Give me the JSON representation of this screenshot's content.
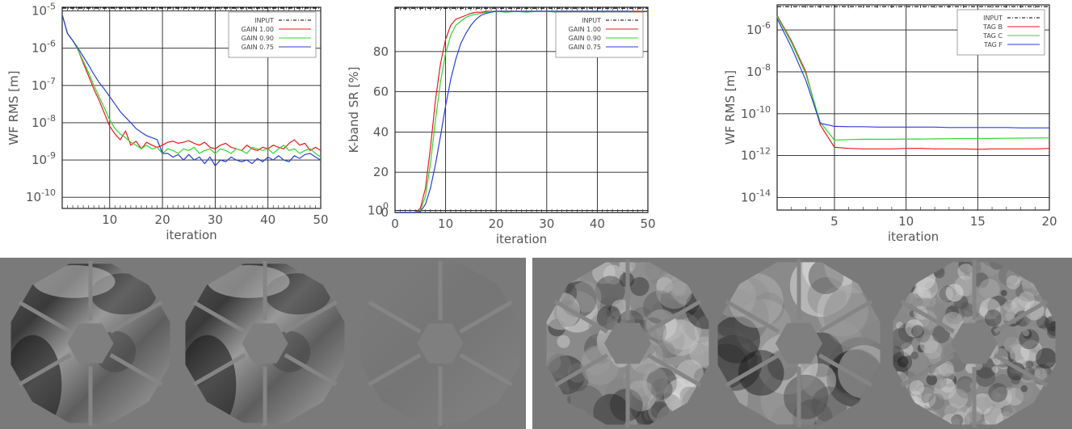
{
  "chart_data": [
    {
      "type": "line",
      "xlabel": "iteration",
      "ylabel": "WF RMS [m]",
      "xlim": [
        1,
        50
      ],
      "ylim_log10": [
        -10.3,
        -4.9
      ],
      "yscale": "log",
      "xticks": [
        "10",
        "20",
        "30",
        "40",
        "50"
      ],
      "yticks": [
        "10-10",
        "10-9",
        "10-8",
        "10-7",
        "10-6",
        "10-5"
      ],
      "grid": true,
      "legend_position": "top-right",
      "series": [
        {
          "name": "INPUT",
          "color": "#000000",
          "dash": "dash-dot",
          "x": [
            1,
            50
          ],
          "values": [
            1.2e-05,
            1.2e-05
          ]
        },
        {
          "name": "GAIN 1.00",
          "color": "#e8171d",
          "x": [
            1,
            2,
            3,
            4,
            5,
            6,
            7,
            8,
            9,
            10,
            11,
            12,
            13,
            14,
            15,
            16,
            17,
            18,
            19,
            20,
            21,
            22,
            23,
            24,
            25,
            26,
            27,
            28,
            29,
            30,
            31,
            32,
            33,
            34,
            35,
            36,
            37,
            38,
            39,
            40,
            41,
            42,
            43,
            44,
            45,
            46,
            47,
            48,
            49,
            50
          ],
          "values": [
            8e-06,
            2.5e-06,
            1.6e-06,
            9e-07,
            4e-07,
            1.8e-07,
            8e-08,
            4e-08,
            1.8e-08,
            8e-09,
            5e-09,
            3.5e-09,
            6e-09,
            2.5e-09,
            3.2e-09,
            2e-09,
            3e-09,
            2.5e-09,
            2.2e-09,
            2.5e-09,
            3e-09,
            3.2e-09,
            2.8e-09,
            3e-09,
            3.3e-09,
            2.8e-09,
            2.5e-09,
            3e-09,
            2.2e-09,
            2e-09,
            2.5e-09,
            2.8e-09,
            2.2e-09,
            2e-09,
            1.8e-09,
            2.5e-09,
            2e-09,
            1.8e-09,
            2.2e-09,
            2e-09,
            2.5e-09,
            2.2e-09,
            2e-09,
            2.8e-09,
            3.5e-09,
            2.5e-09,
            2.8e-09,
            1.8e-09,
            2.2e-09,
            1.8e-09
          ]
        },
        {
          "name": "GAIN 0.90",
          "color": "#2fd62f",
          "x": [
            1,
            2,
            3,
            4,
            5,
            6,
            7,
            8,
            9,
            10,
            11,
            12,
            13,
            14,
            15,
            16,
            17,
            18,
            19,
            20,
            21,
            22,
            23,
            24,
            25,
            26,
            27,
            28,
            29,
            30,
            31,
            32,
            33,
            34,
            35,
            36,
            37,
            38,
            39,
            40,
            41,
            42,
            43,
            44,
            45,
            46,
            47,
            48,
            49,
            50
          ],
          "values": [
            8e-06,
            2.5e-06,
            1.6e-06,
            9e-07,
            4.5e-07,
            2.2e-07,
            1e-07,
            5e-08,
            2.5e-08,
            1.2e-08,
            7e-09,
            5e-09,
            4e-09,
            3e-09,
            2.5e-09,
            2e-09,
            2.5e-09,
            2e-09,
            2.2e-09,
            1.5e-09,
            2e-09,
            1.8e-09,
            1.5e-09,
            2e-09,
            1.8e-09,
            2.2e-09,
            1.5e-09,
            1.8e-09,
            2e-09,
            1.5e-09,
            2e-09,
            1.8e-09,
            1.5e-09,
            2e-09,
            1.8e-09,
            1.5e-09,
            2.2e-09,
            2e-09,
            1.8e-09,
            2e-09,
            1.5e-09,
            2e-09,
            2.5e-09,
            1.8e-09,
            2e-09,
            1.5e-09,
            1.8e-09,
            2e-09,
            1.5e-09,
            1.2e-09
          ]
        },
        {
          "name": "GAIN 0.75",
          "color": "#2b3ed6",
          "x": [
            1,
            2,
            3,
            4,
            5,
            6,
            7,
            8,
            9,
            10,
            11,
            12,
            13,
            14,
            15,
            16,
            17,
            18,
            19,
            20,
            21,
            22,
            23,
            24,
            25,
            26,
            27,
            28,
            29,
            30,
            31,
            32,
            33,
            34,
            35,
            36,
            37,
            38,
            39,
            40,
            41,
            42,
            43,
            44,
            45,
            46,
            47,
            48,
            49,
            50
          ],
          "values": [
            8e-06,
            2.5e-06,
            1.6e-06,
            1e-06,
            6e-07,
            3.5e-07,
            2e-07,
            1.2e-07,
            8e-08,
            5e-08,
            3.2e-08,
            2e-08,
            1.4e-08,
            1e-08,
            7e-09,
            5.5e-09,
            4.5e-09,
            4e-09,
            3.5e-09,
            1.5e-09,
            1.5e-09,
            1.2e-09,
            1.4e-09,
            1e-09,
            1.4e-09,
            1e-09,
            1.2e-09,
            8e-10,
            1.2e-09,
            7e-10,
            1e-09,
            9e-10,
            1.2e-09,
            1e-09,
            9e-10,
            1e-09,
            8e-10,
            1.1e-09,
            9e-10,
            1.2e-09,
            1e-09,
            1.3e-09,
            1e-09,
            9e-10,
            1.3e-09,
            1.1e-09,
            1.4e-09,
            1.5e-09,
            1.2e-09,
            1e-09
          ]
        }
      ]
    },
    {
      "type": "line",
      "xlabel": "iteration",
      "ylabel": "K-band SR [%]",
      "xlim": [
        0,
        50
      ],
      "ylim": [
        0,
        102
      ],
      "xticks": [
        "0",
        "10",
        "20",
        "30",
        "40",
        "50"
      ],
      "yticks": [
        "0",
        "20",
        "40",
        "60",
        "80",
        "100"
      ],
      "grid": true,
      "legend_position": "top-right",
      "series": [
        {
          "name": "INPUT",
          "color": "#000000",
          "dash": "dash-dot",
          "x": [
            0,
            50
          ],
          "values": [
            101.5,
            101.5
          ]
        },
        {
          "name": "GAIN 1.00",
          "color": "#e8171d",
          "x": [
            0,
            1,
            2,
            3,
            4,
            5,
            6,
            7,
            8,
            9,
            10,
            11,
            12,
            13,
            14,
            15,
            16,
            17,
            18,
            19,
            20,
            22,
            24,
            26,
            28,
            30,
            32,
            34,
            36,
            38,
            40,
            42,
            44,
            46,
            48,
            50
          ],
          "values": [
            0,
            0,
            0,
            0,
            0,
            2,
            12,
            32,
            56,
            74,
            86,
            93,
            96,
            97,
            98,
            99,
            99.5,
            99.5,
            100,
            100,
            100,
            100,
            100,
            100,
            100,
            100,
            100,
            100,
            100,
            100,
            100,
            100,
            100,
            100,
            100,
            100
          ]
        },
        {
          "name": "GAIN 0.90",
          "color": "#2fd62f",
          "x": [
            0,
            1,
            2,
            3,
            4,
            5,
            6,
            7,
            8,
            9,
            10,
            11,
            12,
            13,
            14,
            15,
            16,
            17,
            18,
            19,
            20,
            22,
            24,
            26,
            28,
            30,
            32,
            34,
            36,
            38,
            40,
            42,
            44,
            46,
            48,
            50
          ],
          "values": [
            0,
            0,
            0,
            0,
            0,
            1,
            8,
            24,
            46,
            65,
            79,
            88,
            93,
            95,
            97,
            98,
            98.5,
            99,
            99.5,
            100,
            100,
            99.5,
            100,
            99.5,
            100,
            100,
            99.5,
            100,
            100,
            100,
            99.5,
            100,
            100,
            100,
            99.5,
            100
          ]
        },
        {
          "name": "GAIN 0.75",
          "color": "#2b3ed6",
          "x": [
            0,
            1,
            2,
            3,
            4,
            5,
            6,
            7,
            8,
            9,
            10,
            11,
            12,
            13,
            14,
            15,
            16,
            17,
            18,
            19,
            20,
            22,
            24,
            26,
            28,
            30,
            32,
            34,
            36,
            38,
            40,
            42,
            44,
            46,
            48,
            50
          ],
          "values": [
            0,
            0,
            0,
            0,
            0,
            0.5,
            4,
            12,
            24,
            38,
            53,
            66,
            76,
            84,
            89,
            93,
            96,
            98,
            99,
            99.5,
            100,
            100,
            100,
            100,
            100,
            100,
            100,
            100,
            100,
            100,
            100,
            100,
            100,
            100,
            99.5,
            100
          ]
        }
      ]
    },
    {
      "type": "line",
      "xlabel": "iteration",
      "ylabel": "WF RMS [m]",
      "xlim": [
        1,
        20
      ],
      "ylim_log10": [
        -14.6,
        -4.8
      ],
      "yscale": "log",
      "xticks": [
        "5",
        "10",
        "15",
        "20"
      ],
      "yticks": [
        "10-14",
        "10-12",
        "10-10",
        "10-8",
        "10-6"
      ],
      "grid": true,
      "legend_position": "top-right",
      "series": [
        {
          "name": "INPUT",
          "color": "#000000",
          "dash": "dash-dot",
          "x": [
            1,
            20
          ],
          "values": [
            1.3e-05,
            1.3e-05
          ]
        },
        {
          "name": "TAG B",
          "color": "#e8171d",
          "x": [
            1,
            2,
            3,
            4,
            5,
            6,
            7,
            8,
            9,
            10,
            11,
            12,
            13,
            14,
            15,
            16,
            17,
            18,
            19,
            20
          ],
          "values": [
            5e-06,
            3e-07,
            1e-08,
            3e-11,
            2.5e-12,
            2.2e-12,
            2.1e-12,
            2.1e-12,
            2.1e-12,
            2.2e-12,
            2.2e-12,
            2.1e-12,
            2.1e-12,
            2.1e-12,
            2e-12,
            2.1e-12,
            2.1e-12,
            2.1e-12,
            2.1e-12,
            2.2e-12
          ]
        },
        {
          "name": "TAG C",
          "color": "#2fd62f",
          "x": [
            1,
            2,
            3,
            4,
            5,
            6,
            7,
            8,
            9,
            10,
            11,
            12,
            13,
            14,
            15,
            16,
            17,
            18,
            19,
            20
          ],
          "values": [
            4.5e-06,
            2.5e-07,
            8e-09,
            4e-11,
            5.5e-12,
            5.8e-12,
            6e-12,
            6e-12,
            6e-12,
            6.2e-12,
            6.2e-12,
            6.3e-12,
            6.4e-12,
            6.5e-12,
            6.5e-12,
            6.6e-12,
            6.7e-12,
            6.8e-12,
            6.9e-12,
            7e-12
          ]
        },
        {
          "name": "TAG F",
          "color": "#2b3ed6",
          "x": [
            1,
            2,
            3,
            4,
            5,
            6,
            7,
            8,
            9,
            10,
            11,
            12,
            13,
            14,
            15,
            16,
            17,
            18,
            19,
            20
          ],
          "values": [
            3.5e-06,
            1.5e-07,
            4e-09,
            3.5e-11,
            2.5e-11,
            2.4e-11,
            2.4e-11,
            2.3e-11,
            2.3e-11,
            2.3e-11,
            2.3e-11,
            2.3e-11,
            2.2e-11,
            2.2e-11,
            2.2e-11,
            2.2e-11,
            2.2e-11,
            2.1e-11,
            2.1e-11,
            2.1e-11
          ]
        }
      ]
    }
  ],
  "colors": {
    "panel_bg": "#7a7a7a",
    "grid": "#222222",
    "frame": "#333333"
  },
  "bottom_panels": [
    {
      "description_icon": "mirror-wavefront-smooth"
    },
    {
      "description_icon": "mirror-wavefront-turbulent"
    }
  ]
}
